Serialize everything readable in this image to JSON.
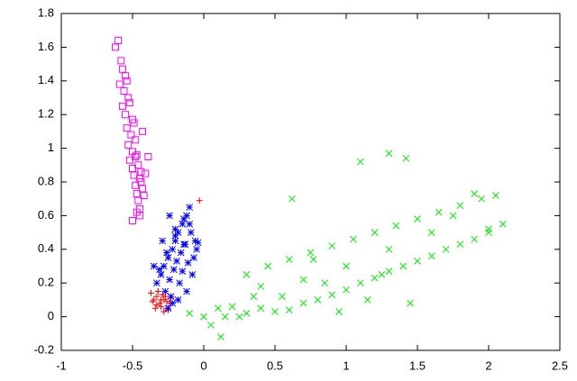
{
  "chart_data": {
    "type": "scatter",
    "xlim": [
      -1,
      2.5
    ],
    "xticks": [
      -1,
      -0.5,
      0,
      0.5,
      1,
      1.5,
      2,
      2.5
    ],
    "ylim": [
      -0.2,
      1.8
    ],
    "yticks": [
      -0.2,
      0,
      0.2,
      0.4,
      0.6,
      0.8,
      1,
      1.2,
      1.4,
      1.6,
      1.8
    ],
    "grid": false,
    "series": [
      {
        "marker": "plus",
        "color": "#ff0000",
        "x": [
          -0.37,
          -0.35,
          -0.33,
          -0.31,
          -0.3,
          -0.28,
          -0.26,
          -0.24,
          -0.34,
          -0.32,
          -0.29,
          -0.27,
          -0.25,
          -0.36,
          -0.3,
          -0.23,
          -0.28,
          -0.33,
          -0.26,
          -0.03
        ],
        "y": [
          0.14,
          0.1,
          0.12,
          0.08,
          0.06,
          0.1,
          0.05,
          0.08,
          0.05,
          0.15,
          0.13,
          0.12,
          0.04,
          0.09,
          0.1,
          0.11,
          0.03,
          0.07,
          0.09,
          0.69
        ]
      },
      {
        "marker": "cross",
        "color": "#00ee00",
        "x": [
          -0.1,
          0,
          0.05,
          0.1,
          0.15,
          0.2,
          0.3,
          0.4,
          0.5,
          0.6,
          0.7,
          0.8,
          0.9,
          1.0,
          1.1,
          1.2,
          1.3,
          1.4,
          1.5,
          1.6,
          1.7,
          1.8,
          1.9,
          2.0,
          2.1,
          0.3,
          0.45,
          0.6,
          0.75,
          0.9,
          1.05,
          1.2,
          1.35,
          1.5,
          1.65,
          1.8,
          1.95,
          2.05,
          0.4,
          0.7,
          1.0,
          1.3,
          1.6,
          0.55,
          0.85,
          1.15,
          1.45,
          1.75,
          0.12,
          0.25,
          1.1,
          1.3,
          1.42,
          0.62,
          0.77,
          1.9,
          0.35,
          2.0,
          0.95,
          1.25
        ],
        "y": [
          0.02,
          0.0,
          -0.05,
          0.05,
          0.0,
          0.06,
          0.02,
          0.05,
          0.03,
          0.04,
          0.08,
          0.1,
          0.13,
          0.16,
          0.2,
          0.23,
          0.27,
          0.3,
          0.33,
          0.36,
          0.4,
          0.43,
          0.46,
          0.5,
          0.55,
          0.25,
          0.3,
          0.34,
          0.38,
          0.42,
          0.46,
          0.5,
          0.54,
          0.58,
          0.62,
          0.66,
          0.7,
          0.72,
          0.18,
          0.22,
          0.3,
          0.4,
          0.5,
          0.12,
          0.2,
          0.1,
          0.08,
          0.6,
          -0.12,
          0.0,
          0.92,
          0.97,
          0.94,
          0.7,
          0.34,
          0.73,
          0.12,
          0.52,
          0.03,
          0.25
        ]
      },
      {
        "marker": "star",
        "color": "#0000ff",
        "x": [
          -0.33,
          -0.3,
          -0.28,
          -0.25,
          -0.22,
          -0.2,
          -0.18,
          -0.15,
          -0.12,
          -0.1,
          -0.27,
          -0.24,
          -0.21,
          -0.19,
          -0.16,
          -0.13,
          -0.09,
          -0.06,
          -0.23,
          -0.17,
          -0.31,
          -0.26,
          -0.2,
          -0.14,
          -0.11,
          -0.08,
          -0.05,
          -0.22,
          -0.18,
          -0.12,
          -0.35,
          -0.29,
          -0.24,
          -0.2,
          -0.15,
          -0.1,
          -0.07,
          -0.25,
          -0.14,
          -0.04
        ],
        "y": [
          0.2,
          0.25,
          0.3,
          0.35,
          0.4,
          0.45,
          0.5,
          0.55,
          0.6,
          0.65,
          0.15,
          0.22,
          0.28,
          0.33,
          0.38,
          0.43,
          0.5,
          0.45,
          0.12,
          0.2,
          0.28,
          0.38,
          0.52,
          0.58,
          0.32,
          0.25,
          0.4,
          0.08,
          0.1,
          0.15,
          0.3,
          0.45,
          0.6,
          0.48,
          0.27,
          0.55,
          0.35,
          0.05,
          0.43,
          0.44
        ]
      },
      {
        "marker": "square",
        "color": "#ff00ff",
        "x": [
          -0.62,
          -0.6,
          -0.58,
          -0.57,
          -0.55,
          -0.59,
          -0.56,
          -0.54,
          -0.53,
          -0.57,
          -0.55,
          -0.52,
          -0.5,
          -0.54,
          -0.51,
          -0.49,
          -0.53,
          -0.5,
          -0.48,
          -0.52,
          -0.47,
          -0.5,
          -0.46,
          -0.49,
          -0.45,
          -0.48,
          -0.44,
          -0.47,
          -0.43,
          -0.46,
          -0.45,
          -0.42,
          -0.44,
          -0.47,
          -0.41,
          -0.5,
          -0.45,
          -0.48,
          -0.43,
          -0.39
        ],
        "y": [
          1.6,
          1.64,
          1.52,
          1.47,
          1.43,
          1.38,
          1.34,
          1.4,
          1.3,
          1.25,
          1.2,
          1.27,
          1.17,
          1.12,
          1.08,
          1.15,
          1.02,
          0.98,
          1.05,
          0.93,
          0.96,
          0.88,
          0.9,
          0.84,
          0.82,
          0.78,
          0.86,
          0.73,
          0.76,
          0.69,
          0.64,
          0.72,
          0.8,
          0.62,
          0.85,
          0.57,
          0.6,
          0.95,
          1.1,
          0.95
        ]
      }
    ]
  }
}
